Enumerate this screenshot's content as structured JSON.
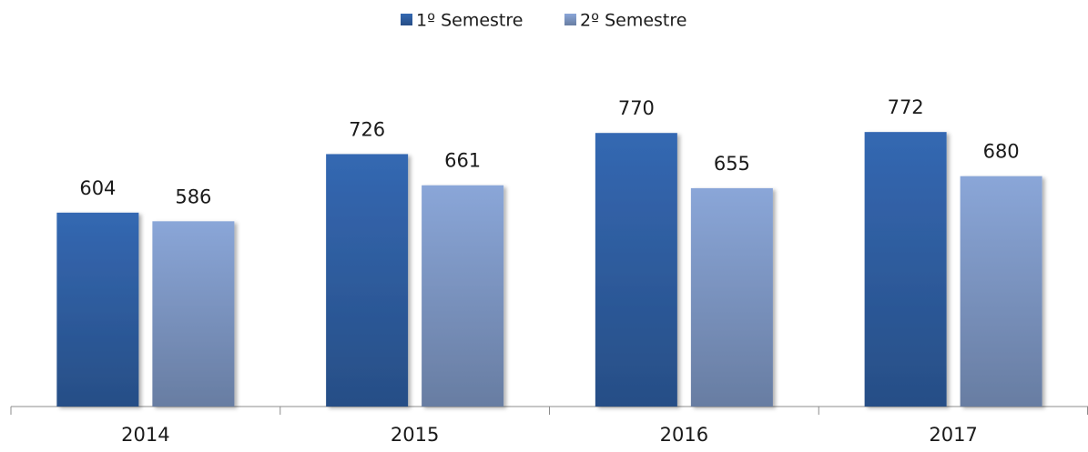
{
  "chart_data": {
    "type": "bar",
    "categories": [
      "2014",
      "2015",
      "2016",
      "2017"
    ],
    "series": [
      {
        "name": "1º Semestre",
        "color": "#3468b2",
        "values": [
          604,
          726,
          770,
          772
        ]
      },
      {
        "name": "2º Semestre",
        "color": "#8aa6d8",
        "values": [
          586,
          661,
          655,
          680
        ]
      }
    ],
    "ylim": [
      200,
      850
    ],
    "legend": "top"
  }
}
